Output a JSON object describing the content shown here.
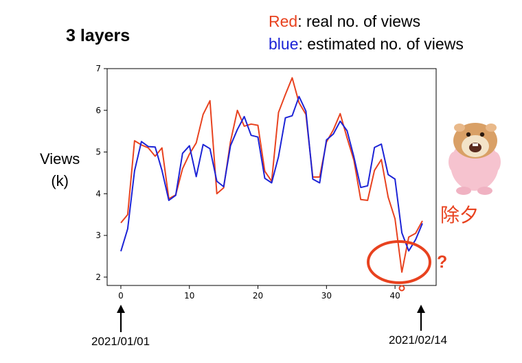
{
  "slide": {
    "title": "3 layers",
    "legend_red_word": "Red",
    "legend_red_rest": ": real no. of views",
    "legend_blue_word": "blue",
    "legend_blue_rest": ":  estimated no. of views",
    "ylabel_line1": "Views",
    "ylabel_line2": "(k)",
    "date_start": "2021/01/01",
    "date_end": "2021/02/14",
    "eve_label": "除夕",
    "question_mark": "?",
    "colors": {
      "real": "#e8421f",
      "estimated": "#1c23d6",
      "annotation": "#e8421f"
    }
  },
  "chart_data": {
    "type": "line",
    "xlim": [
      -2,
      46
    ],
    "ylim": [
      1.8,
      7
    ],
    "xticks": [
      0,
      10,
      20,
      30,
      40
    ],
    "yticks": [
      2,
      3,
      4,
      5,
      6,
      7
    ],
    "grid": false,
    "series": [
      {
        "name": "Red",
        "color": "#e8421f",
        "x": [
          0,
          1,
          2,
          3,
          4,
          5,
          6,
          7,
          8,
          9,
          10,
          11,
          12,
          13,
          14,
          15,
          16,
          17,
          18,
          19,
          20,
          21,
          22,
          23,
          24,
          25,
          26,
          27,
          28,
          29,
          30,
          31,
          32,
          33,
          34,
          35,
          36,
          37,
          38,
          39,
          40,
          41,
          42,
          43,
          44
        ],
        "values": [
          3.3,
          3.5,
          5.27,
          5.17,
          5.1,
          4.9,
          5.1,
          3.88,
          3.97,
          4.6,
          4.95,
          5.22,
          5.9,
          6.23,
          4.0,
          4.14,
          5.25,
          6.0,
          5.62,
          5.67,
          5.64,
          4.54,
          4.3,
          5.95,
          6.38,
          6.78,
          6.18,
          5.9,
          4.4,
          4.4,
          5.24,
          5.53,
          5.92,
          5.34,
          4.8,
          3.86,
          3.84,
          4.56,
          4.82,
          3.92,
          3.4,
          2.12,
          2.96,
          3.05,
          3.35
        ]
      },
      {
        "name": "blue",
        "color": "#1c23d6",
        "x": [
          0,
          1,
          2,
          3,
          4,
          5,
          6,
          7,
          8,
          9,
          10,
          11,
          12,
          13,
          14,
          15,
          16,
          17,
          18,
          19,
          20,
          21,
          22,
          23,
          24,
          25,
          26,
          27,
          28,
          29,
          30,
          31,
          32,
          33,
          34,
          35,
          36,
          37,
          38,
          39,
          40,
          41,
          42,
          43,
          44
        ],
        "values": [
          2.62,
          3.16,
          4.55,
          5.25,
          5.13,
          5.12,
          4.56,
          3.84,
          3.96,
          4.97,
          5.15,
          4.41,
          5.18,
          5.08,
          4.3,
          4.17,
          5.15,
          5.54,
          5.85,
          5.4,
          5.36,
          4.37,
          4.26,
          4.89,
          5.82,
          5.87,
          6.33,
          5.98,
          4.35,
          4.26,
          5.29,
          5.43,
          5.74,
          5.51,
          4.88,
          4.15,
          4.19,
          5.11,
          5.19,
          4.46,
          4.35,
          3.06,
          2.63,
          2.9,
          3.29
        ]
      }
    ]
  }
}
